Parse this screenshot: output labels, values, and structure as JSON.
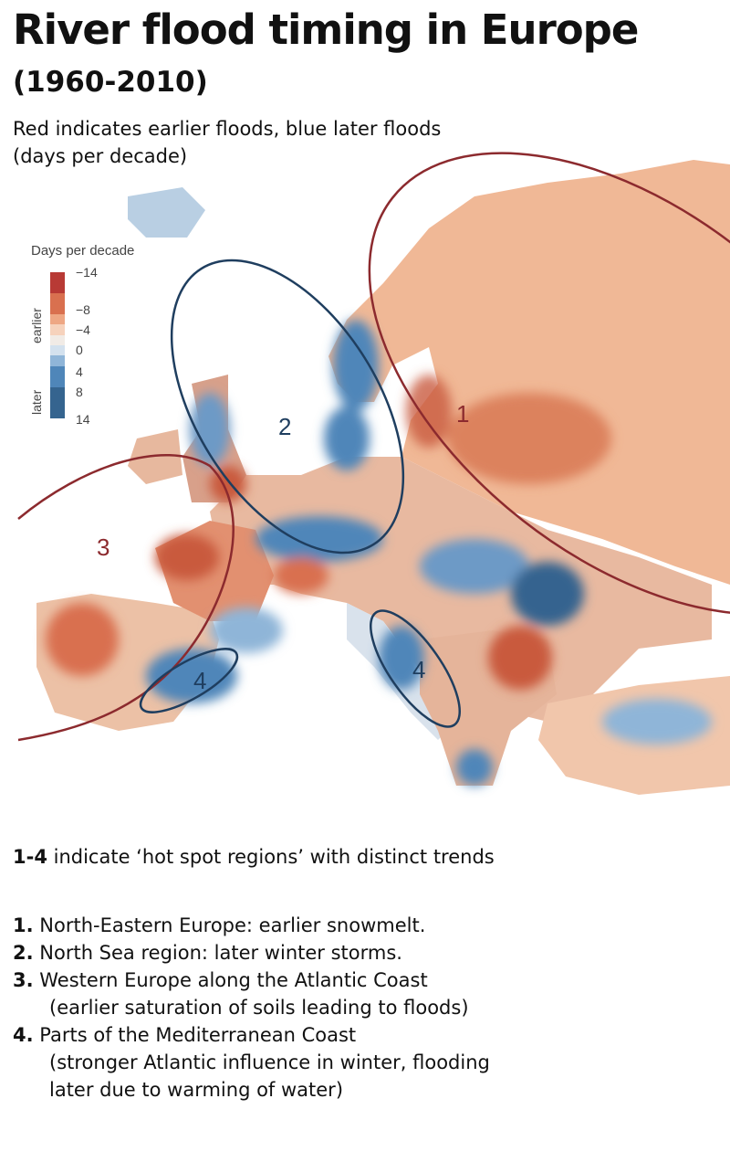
{
  "title": "River flood timing in Europe",
  "years": "(1960-2010)",
  "subtitle": [
    "Red indicates earlier floods, blue later floods",
    "(days per decade)"
  ],
  "legend": {
    "title": "Days per decade",
    "earlier_label": "earlier",
    "later_label": "later",
    "ticks": [
      "−14",
      "−8",
      "−4",
      "0",
      "4",
      "8",
      "14"
    ],
    "colors": [
      "#b83a35",
      "#b83a35",
      "#d9704f",
      "#d9704f",
      "#eea784",
      "#f6d2bc",
      "#f1ebe6",
      "#d3e1ee",
      "#8fb5d8",
      "#4f86b9",
      "#4f86b9",
      "#35648f",
      "#35648f",
      "#35648f"
    ]
  },
  "regions": [
    {
      "label": "1",
      "color": "#8c2a2e"
    },
    {
      "label": "2",
      "color": "#1f3e5f"
    },
    {
      "label": "3",
      "color": "#8c2a2e"
    },
    {
      "label": "4",
      "color": "#1f3e5f"
    },
    {
      "label": "4",
      "color": "#1f3e5f"
    }
  ],
  "note": {
    "bold": "1-4",
    "text": " indicate ‘hot spot regions’ with distinct trends"
  },
  "list": [
    {
      "num": "1.",
      "text": " North-Eastern Europe: earlier snowmelt.",
      "cont": []
    },
    {
      "num": "2.",
      "text": " North Sea region: later winter storms.",
      "cont": []
    },
    {
      "num": "3.",
      "text": " Western Europe along the Atlantic Coast",
      "cont": [
        "(earlier saturation of soils leading to floods)"
      ]
    },
    {
      "num": "4.",
      "text": " Parts of the Mediterranean Coast",
      "cont": [
        "(stronger Atlantic influence in winter, flooding",
        "later due to warming of water)"
      ]
    }
  ]
}
